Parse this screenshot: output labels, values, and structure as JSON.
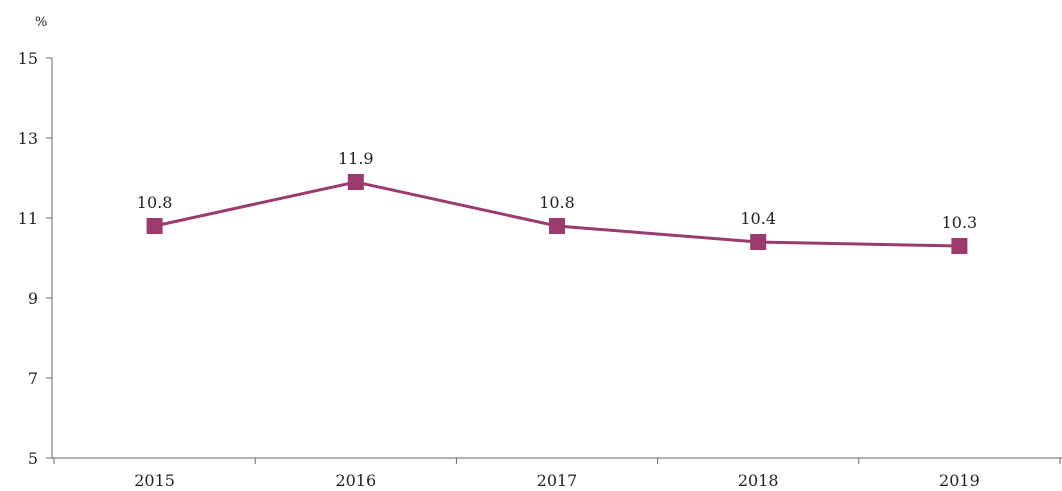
{
  "chart_data": {
    "type": "line",
    "title": "",
    "xlabel": "",
    "ylabel": "",
    "y_unit": "%",
    "categories": [
      "2015",
      "2016",
      "2017",
      "2018",
      "2019"
    ],
    "series": [
      {
        "values": [
          10.8,
          11.9,
          10.8,
          10.4,
          10.3
        ],
        "color": "#9b3a6e",
        "marker": "square"
      }
    ],
    "data_labels": [
      "10.8",
      "11.9",
      "10.8",
      "10.4",
      "10.3"
    ],
    "ylim": [
      5,
      15
    ],
    "y_ticks": [
      "5",
      "7",
      "9",
      "11",
      "13",
      "15"
    ],
    "grid": false,
    "legend": "none"
  }
}
